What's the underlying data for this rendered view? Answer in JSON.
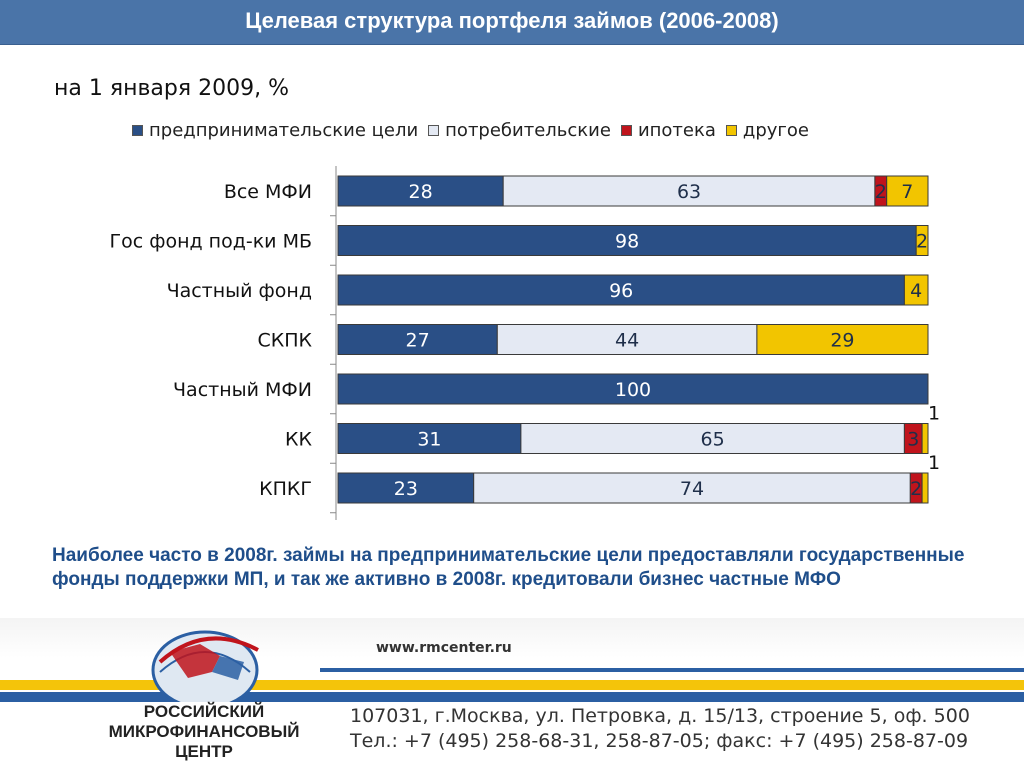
{
  "header": {
    "title": "Целевая структура портфеля займов  (2006-2008)"
  },
  "subtitle": "на 1 января 2009, %",
  "legend": [
    {
      "label": "предпринимательские цели",
      "color": "#2a4f86"
    },
    {
      "label": "потребительские",
      "color": "#e4e9f3"
    },
    {
      "label": "ипотека",
      "color": "#c0141c"
    },
    {
      "label": "другое",
      "color": "#f2c500"
    }
  ],
  "chart_data": {
    "type": "bar",
    "orientation": "horizontal",
    "stacked": true,
    "categories": [
      "Все МФИ",
      "Гос фонд под-ки МБ",
      "Частный фонд",
      "СКПК",
      "Частный МФИ",
      "КК",
      "КПКГ"
    ],
    "series": [
      {
        "name": "предпринимательские цели",
        "values": [
          28,
          98,
          96,
          27,
          100,
          31,
          23
        ]
      },
      {
        "name": "потребительские",
        "values": [
          63,
          0,
          0,
          44,
          0,
          65,
          74
        ]
      },
      {
        "name": "ипотека",
        "values": [
          2,
          0,
          0,
          0,
          0,
          3,
          2
        ]
      },
      {
        "name": "другое",
        "values": [
          7,
          2,
          4,
          29,
          0,
          1,
          1
        ]
      }
    ],
    "xlim": [
      0,
      100
    ],
    "grid": false
  },
  "note": "Наиболее часто в 2008г. займы на предпринимательские цели предоставляли государственные фонды поддержки МП, и так же активно в 2008г. кредитовали бизнес частные МФО",
  "footer": {
    "url": "www.rmcenter.ru",
    "org_line1": "РОССИЙСКИЙ",
    "org_line2": "МИКРОФИНАНСОВЫЙ",
    "org_line3": "ЦЕНТР",
    "address": "107031, г.Москва, ул. Петровка, д. 15/13, строение 5, оф. 500",
    "phones": "Тел.: +7 (495) 258-68-31, 258-87-05; факс: +7 (495) 258-87-09"
  }
}
